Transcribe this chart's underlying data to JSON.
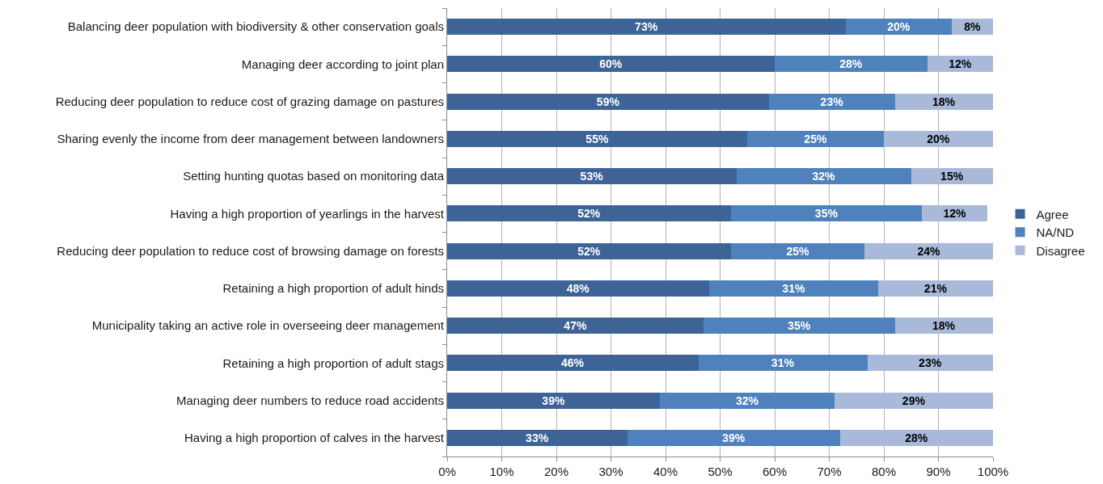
{
  "chart_data": {
    "type": "bar",
    "orientation": "horizontal",
    "stacked": true,
    "categories": [
      "Balancing deer population with biodiversity & other conservation goals",
      "Managing deer according to joint plan",
      "Reducing deer population to reduce cost of grazing damage on pastures",
      "Sharing evenly the income from deer management between landowners",
      "Setting hunting quotas based on monitoring data",
      "Having a high proportion of yearlings in the harvest",
      "Reducing deer population to reduce cost of browsing damage on forests",
      "Retaining a high proportion of adult hinds",
      "Municipality taking an active role in overseeing deer management",
      "Retaining a high proportion of adult stags",
      "Managing deer numbers to reduce road accidents",
      "Having a high proportion of calves in the harvest"
    ],
    "series": [
      {
        "name": "Agree",
        "color": "#3e6497",
        "values": [
          73,
          60,
          59,
          55,
          53,
          52,
          52,
          48,
          47,
          46,
          39,
          33
        ],
        "value_labels": [
          "73%",
          "60%",
          "59%",
          "55%",
          "53%",
          "52%",
          "52%",
          "48%",
          "47%",
          "46%",
          "39%",
          "33%"
        ]
      },
      {
        "name": "NA/ND",
        "color": "#4f81bd",
        "values": [
          19.5,
          28,
          23,
          25,
          32,
          35,
          24.5,
          31,
          35,
          31,
          32,
          39
        ],
        "value_labels": [
          "20%",
          "28%",
          "23%",
          "25%",
          "32%",
          "35%",
          "25%",
          "31%",
          "35%",
          "31%",
          "32%",
          "39%"
        ]
      },
      {
        "name": "Disagree",
        "color": "#a8b9d9",
        "values": [
          7.5,
          12,
          18,
          20,
          15,
          12,
          23.5,
          21,
          18,
          23,
          29,
          28
        ],
        "value_labels": [
          "8%",
          "12%",
          "18%",
          "20%",
          "15%",
          "12%",
          "24%",
          "21%",
          "18%",
          "23%",
          "29%",
          "28%"
        ]
      }
    ],
    "xlim": [
      0,
      100
    ],
    "xticks": [
      {
        "value": 0,
        "label": "0%"
      },
      {
        "value": 10,
        "label": "10%"
      },
      {
        "value": 20,
        "label": "20%"
      },
      {
        "value": 30,
        "label": "30%"
      },
      {
        "value": 40,
        "label": "40%"
      },
      {
        "value": 50,
        "label": "50%"
      },
      {
        "value": 60,
        "label": "60%"
      },
      {
        "value": 70,
        "label": "70%"
      },
      {
        "value": 80,
        "label": "80%"
      },
      {
        "value": 90,
        "label": "90%"
      },
      {
        "value": 100,
        "label": "100%"
      }
    ],
    "grid": "x",
    "legend": "right"
  }
}
